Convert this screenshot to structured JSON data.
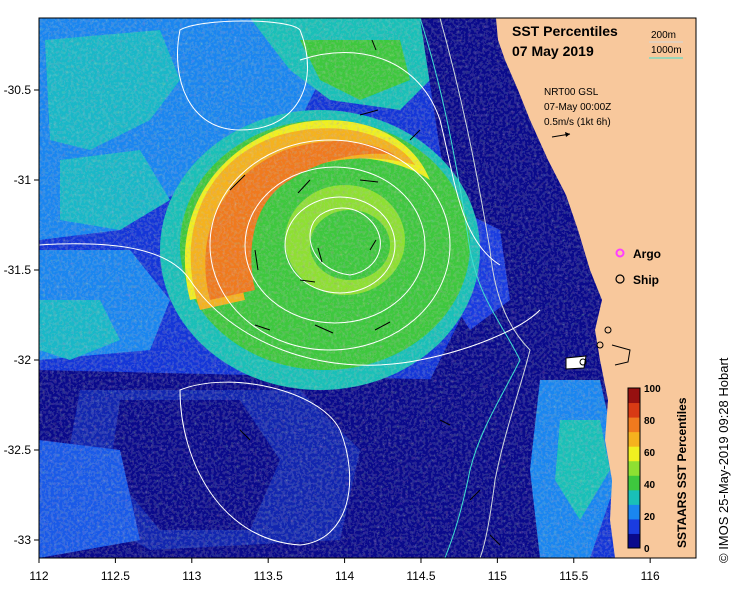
{
  "title": {
    "line1": "SST Percentiles",
    "line2": "07 May 2019"
  },
  "depth_key": {
    "d200": "200m",
    "d1000": "1000m",
    "c200": "#cfd8dc",
    "c1000": "#40e0d0"
  },
  "current_info": {
    "model": "NRT00 GSL",
    "time": "07-May 00:00Z",
    "scale": "0.5m/s (1kt 6h)"
  },
  "legend": {
    "argo": "Argo",
    "ship": "Ship",
    "argo_color": "#ff40ff"
  },
  "colorbar": {
    "title": "SSTAARS SST Percentiles",
    "ticks": [
      "100",
      "80",
      "60",
      "40",
      "20",
      "0"
    ],
    "colors": [
      "#0a0a8c",
      "#1a3ce0",
      "#1a86f0",
      "#19c0b8",
      "#3ec83e",
      "#8ee032",
      "#f0f020",
      "#f5b21e",
      "#f07a1e",
      "#d83a14",
      "#961010"
    ]
  },
  "credit": "© IMOS 25-May-2019 09:28 Hobart",
  "axes": {
    "x_ticks": [
      "112",
      "112.5",
      "113",
      "113.5",
      "114",
      "114.5",
      "115",
      "115.5",
      "116"
    ],
    "y_ticks": [
      "-30.5",
      "-31",
      "-31.5",
      "-32",
      "-32.5",
      "-33"
    ],
    "lon_range": [
      112,
      116.3
    ],
    "lat_range": [
      -33.1,
      -30.1
    ]
  },
  "colors": {
    "land": "#f8c89c",
    "contour": "#ffffff",
    "deep_ocean": "#0a0a8c"
  }
}
